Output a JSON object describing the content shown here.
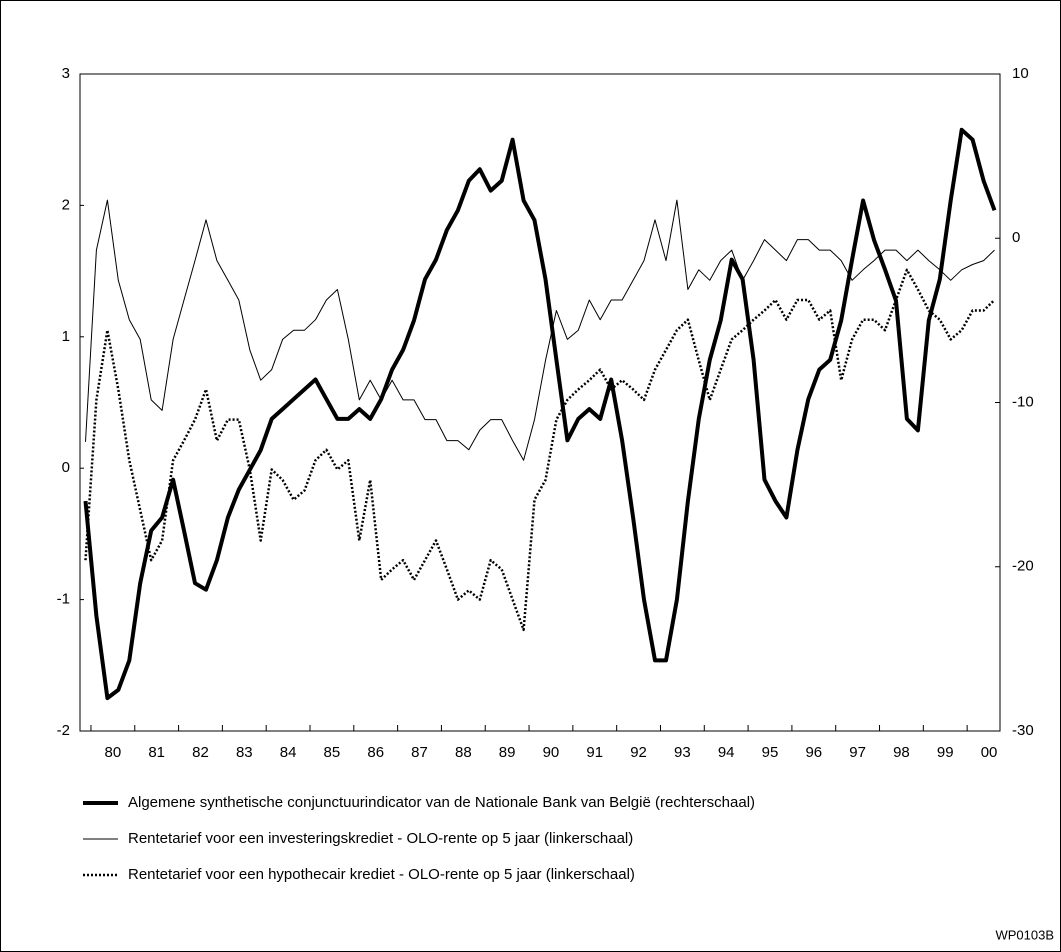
{
  "chart_data": {
    "type": "line",
    "categories": [
      null,
      null,
      "80",
      null,
      null,
      null,
      "81",
      null,
      null,
      null,
      "82",
      null,
      null,
      null,
      "83",
      null,
      null,
      null,
      "84",
      null,
      null,
      null,
      "85",
      null,
      null,
      null,
      "86",
      null,
      null,
      null,
      "87",
      null,
      null,
      null,
      "88",
      null,
      null,
      null,
      "89",
      null,
      null,
      null,
      "90",
      null,
      null,
      null,
      "91",
      null,
      null,
      null,
      "92",
      null,
      null,
      null,
      "93",
      null,
      null,
      null,
      "94",
      null,
      null,
      null,
      "95",
      null,
      null,
      null,
      "96",
      null,
      null,
      null,
      "97",
      null,
      null,
      null,
      "98",
      null,
      null,
      null,
      "99",
      null,
      null,
      null,
      "00",
      null
    ],
    "ylim": [
      -2,
      3
    ],
    "yticks": [
      -2,
      -1,
      0,
      1,
      2,
      3
    ],
    "y2lim": [
      -30,
      10
    ],
    "y2ticks": [
      -30,
      -20,
      -10,
      0,
      10
    ],
    "series": [
      {
        "name": "Algemene synthetische conjunctuurindicator van de Nationale Bank van België (rechterschaal)",
        "color": "#000000",
        "style": "thick",
        "axis": "y2",
        "values": [
          -16,
          -23,
          -28,
          -27.5,
          -25.7,
          -21,
          -17.8,
          -17,
          -14.7,
          -17.8,
          -21,
          -21.4,
          -19.6,
          -17,
          -15.3,
          -14.1,
          -12.9,
          -11,
          -10.4,
          -9.8,
          -9.2,
          -8.6,
          -9.8,
          -11,
          -11,
          -10.4,
          -11,
          -9.8,
          -8,
          -6.8,
          -5,
          -2.5,
          -1.3,
          0.5,
          1.7,
          3.5,
          4.2,
          2.9,
          3.5,
          6,
          2.3,
          1.1,
          -2.5,
          -7.4,
          -12.3,
          -11,
          -10.4,
          -11,
          -8.6,
          -12.3,
          -17,
          -22,
          -25.7,
          -25.7,
          -22,
          -16,
          -11,
          -7.4,
          -5,
          -1.3,
          -2.5,
          -7.4,
          -14.7,
          -16,
          -17,
          -12.9,
          -9.8,
          -8,
          -7.4,
          -5,
          -1.3,
          2.3,
          -0.1,
          -1.9,
          -3.8,
          -11,
          -11.7,
          -5,
          -2.5,
          2.3,
          6.6,
          6,
          3.5,
          1.7
        ]
      },
      {
        "name": "Rentetarief voor een investeringskrediet - OLO-rente op 5 jaar (linkerschaal)",
        "color": "#000000",
        "style": "thin",
        "values": [
          0.2,
          1.66,
          2.04,
          1.43,
          1.13,
          0.98,
          0.52,
          0.44,
          0.98,
          1.28,
          1.58,
          1.89,
          1.58,
          1.43,
          1.28,
          0.9,
          0.67,
          0.75,
          0.98,
          1.05,
          1.05,
          1.13,
          1.28,
          1.36,
          0.98,
          0.52,
          0.67,
          0.52,
          0.67,
          0.52,
          0.52,
          0.37,
          0.37,
          0.21,
          0.21,
          0.14,
          0.29,
          0.37,
          0.37,
          0.21,
          0.06,
          0.37,
          0.82,
          1.2,
          0.98,
          1.05,
          1.28,
          1.13,
          1.28,
          1.28,
          1.43,
          1.58,
          1.89,
          1.58,
          2.04,
          1.36,
          1.51,
          1.43,
          1.58,
          1.66,
          1.43,
          1.58,
          1.74,
          1.66,
          1.58,
          1.74,
          1.74,
          1.66,
          1.66,
          1.58,
          1.43,
          1.51,
          1.58,
          1.66,
          1.66,
          1.58,
          1.66,
          1.58,
          1.51,
          1.43,
          1.51,
          1.55,
          1.58,
          1.66
        ]
      },
      {
        "name": "Rentetarief voor een hypothecair krediet - OLO-rente op 5 jaar (linkerschaal)",
        "color": "#000000",
        "style": "dotted",
        "values": [
          -0.7,
          0.52,
          1.05,
          0.6,
          0.06,
          -0.32,
          -0.7,
          -0.55,
          0.06,
          0.21,
          0.37,
          0.6,
          0.21,
          0.37,
          0.37,
          -0.01,
          -0.55,
          -0.01,
          -0.09,
          -0.24,
          -0.17,
          0.06,
          0.14,
          -0.01,
          0.06,
          -0.55,
          -0.09,
          -0.85,
          -0.77,
          -0.7,
          -0.85,
          -0.7,
          -0.55,
          -0.77,
          -1.0,
          -0.93,
          -1.0,
          -0.7,
          -0.77,
          -1.0,
          -1.23,
          -0.24,
          -0.09,
          0.37,
          0.52,
          0.6,
          0.67,
          0.75,
          0.6,
          0.67,
          0.6,
          0.52,
          0.75,
          0.9,
          1.05,
          1.13,
          0.82,
          0.52,
          0.75,
          0.98,
          1.05,
          1.13,
          1.2,
          1.28,
          1.13,
          1.28,
          1.28,
          1.13,
          1.2,
          0.67,
          0.98,
          1.13,
          1.13,
          1.05,
          1.28,
          1.51,
          1.36,
          1.2,
          1.13,
          0.98,
          1.05,
          1.2,
          1.2,
          1.28
        ]
      }
    ],
    "code": "WP0103B"
  }
}
